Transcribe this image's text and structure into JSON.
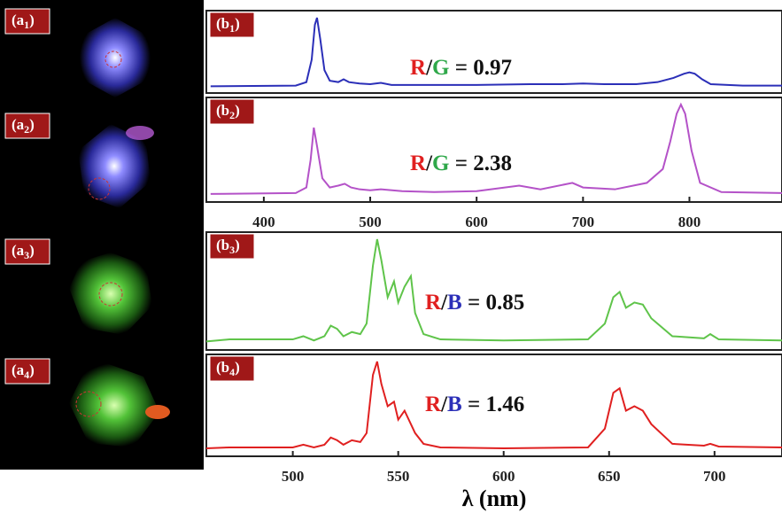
{
  "photo_labels": [
    [
      "(a",
      "1",
      ")"
    ],
    [
      "(a",
      "2",
      ")"
    ],
    [
      "(a",
      "3",
      ")"
    ],
    [
      "(a",
      "4",
      ")"
    ]
  ],
  "chart_data": [
    {
      "type": "line",
      "label": [
        "(b",
        "1",
        ")"
      ],
      "annotation": [
        "R",
        "/",
        "G",
        " = 0.97"
      ],
      "xlim": [
        346,
        887
      ],
      "ylim": [
        0,
        1
      ],
      "x": [
        350,
        430,
        440,
        445,
        448,
        450,
        453,
        457,
        462,
        470,
        475,
        480,
        490,
        500,
        510,
        520,
        550,
        600,
        650,
        680,
        700,
        720,
        750,
        770,
        785,
        795,
        800,
        805,
        812,
        820,
        850,
        887
      ],
      "series": [
        {
          "color": "#2b2fb8",
          "values": [
            0.02,
            0.03,
            0.08,
            0.4,
            0.9,
            1.0,
            0.7,
            0.25,
            0.1,
            0.08,
            0.12,
            0.08,
            0.06,
            0.05,
            0.07,
            0.04,
            0.04,
            0.04,
            0.05,
            0.05,
            0.06,
            0.05,
            0.05,
            0.08,
            0.14,
            0.2,
            0.22,
            0.2,
            0.12,
            0.05,
            0.03,
            0.03
          ]
        }
      ]
    },
    {
      "type": "line",
      "label": [
        "(b",
        "2",
        ")"
      ],
      "annotation": [
        "R",
        "/",
        "G",
        " = 2.38"
      ],
      "xlim": [
        346,
        887
      ],
      "ylim": [
        0,
        1
      ],
      "xticks": [
        400,
        500,
        600,
        700,
        800
      ],
      "x": [
        350,
        430,
        440,
        444,
        447,
        450,
        455,
        462,
        470,
        476,
        482,
        490,
        500,
        510,
        530,
        560,
        600,
        640,
        660,
        690,
        700,
        730,
        760,
        775,
        782,
        788,
        792,
        796,
        802,
        810,
        830,
        887
      ],
      "series": [
        {
          "color": "#b452c8",
          "values": [
            0.03,
            0.04,
            0.1,
            0.4,
            0.75,
            0.55,
            0.2,
            0.1,
            0.12,
            0.14,
            0.1,
            0.08,
            0.07,
            0.08,
            0.06,
            0.05,
            0.06,
            0.12,
            0.08,
            0.15,
            0.1,
            0.08,
            0.15,
            0.3,
            0.6,
            0.9,
            1.0,
            0.9,
            0.5,
            0.15,
            0.05,
            0.04
          ]
        }
      ]
    },
    {
      "type": "line",
      "label": [
        "(b",
        "3",
        ")"
      ],
      "annotation": [
        "R",
        "/",
        "B",
        " = 0.85"
      ],
      "xlim": [
        459,
        732
      ],
      "ylim": [
        0,
        1
      ],
      "x": [
        459,
        470,
        500,
        505,
        510,
        515,
        518,
        521,
        524,
        528,
        532,
        535,
        538,
        540,
        542,
        545,
        548,
        550,
        553,
        556,
        558,
        562,
        570,
        600,
        640,
        648,
        652,
        655,
        658,
        662,
        666,
        670,
        680,
        695,
        698,
        702,
        732
      ],
      "series": [
        {
          "color": "#5fc44a",
          "values": [
            0.03,
            0.05,
            0.05,
            0.08,
            0.04,
            0.08,
            0.18,
            0.15,
            0.08,
            0.12,
            0.1,
            0.2,
            0.75,
            1.0,
            0.8,
            0.45,
            0.6,
            0.4,
            0.55,
            0.65,
            0.3,
            0.1,
            0.05,
            0.04,
            0.05,
            0.2,
            0.45,
            0.5,
            0.35,
            0.4,
            0.38,
            0.25,
            0.08,
            0.06,
            0.1,
            0.05,
            0.04
          ]
        }
      ]
    },
    {
      "type": "line",
      "label": [
        "(b",
        "4",
        ")"
      ],
      "annotation": [
        "R",
        "/",
        "B",
        " = 1.46"
      ],
      "xlim": [
        459,
        732
      ],
      "ylim": [
        0,
        1
      ],
      "xticks": [
        500,
        550,
        600,
        650,
        700
      ],
      "xlabel": "λ (nm)",
      "x": [
        459,
        470,
        500,
        505,
        510,
        515,
        518,
        521,
        524,
        528,
        532,
        535,
        538,
        540,
        542,
        545,
        548,
        550,
        553,
        556,
        558,
        562,
        570,
        600,
        640,
        648,
        652,
        655,
        658,
        662,
        666,
        670,
        680,
        695,
        698,
        702,
        732
      ],
      "series": [
        {
          "color": "#e02020",
          "values": [
            0.03,
            0.04,
            0.04,
            0.07,
            0.04,
            0.07,
            0.15,
            0.12,
            0.07,
            0.12,
            0.1,
            0.2,
            0.85,
            1.0,
            0.75,
            0.5,
            0.55,
            0.35,
            0.45,
            0.3,
            0.2,
            0.08,
            0.04,
            0.03,
            0.04,
            0.25,
            0.65,
            0.7,
            0.45,
            0.5,
            0.45,
            0.3,
            0.08,
            0.06,
            0.08,
            0.05,
            0.04
          ]
        }
      ]
    }
  ]
}
